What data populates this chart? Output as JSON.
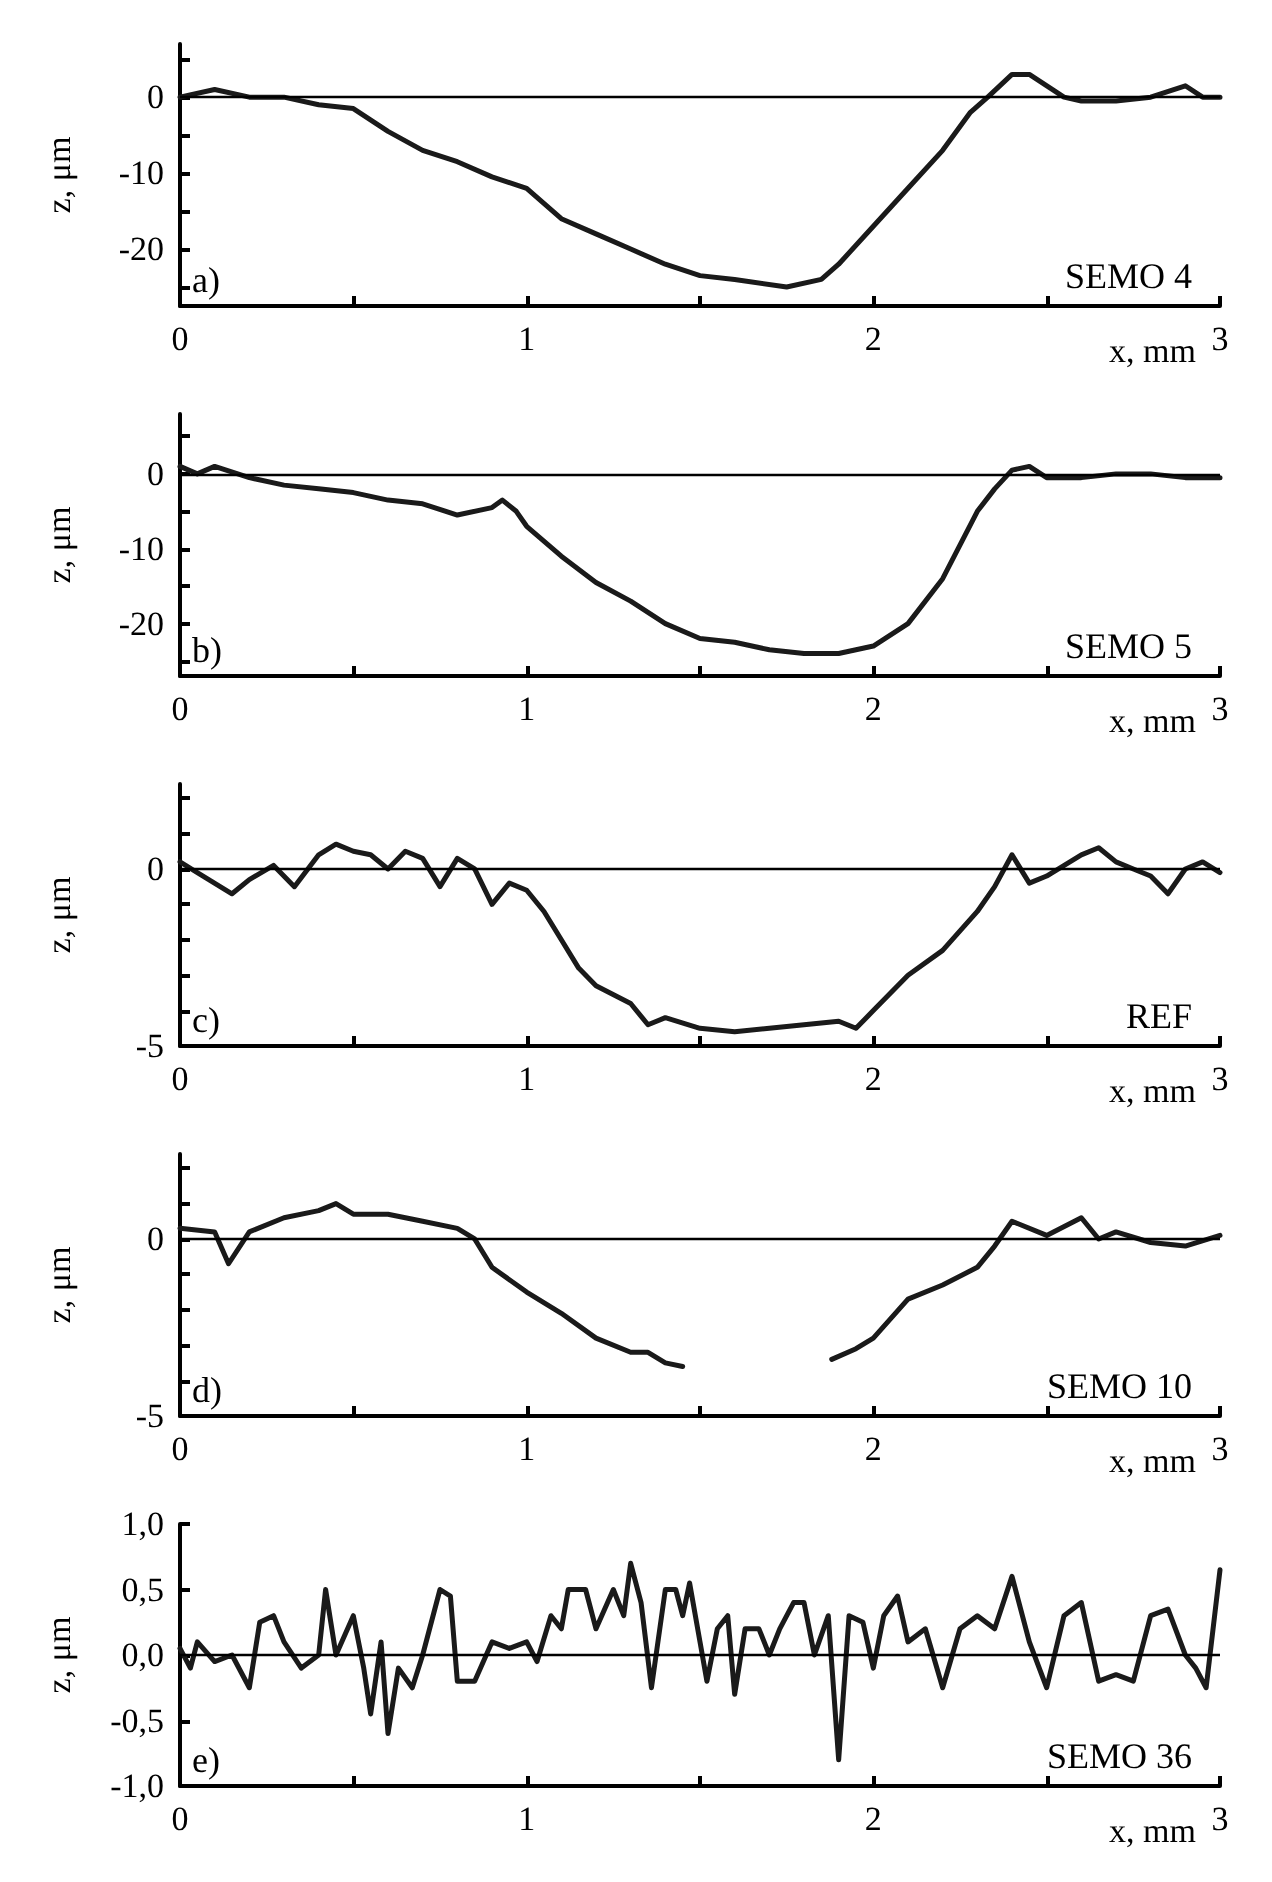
{
  "chart_data": [
    {
      "type": "line",
      "xlabel": "x, mm",
      "ylabel": "z, μm",
      "annotations": [
        "a)",
        "SEMO 4"
      ],
      "xlim": [
        0,
        3
      ],
      "ylim": [
        -27.5,
        7
      ],
      "xticks": [
        0,
        {
          "value": 0.5,
          "label": null
        },
        1,
        {
          "value": 1.5,
          "label": null
        },
        2,
        {
          "value": 2.5,
          "label": null
        },
        3
      ],
      "yticks": [
        {
          "value": -25,
          "label": null
        },
        -20,
        {
          "value": -15,
          "label": null
        },
        -10,
        {
          "value": -5,
          "label": null
        },
        0,
        {
          "value": 5,
          "label": null
        }
      ],
      "grid": false,
      "marker": "none",
      "line_style": "solid",
      "color": "#1a1a1a",
      "ref_lines": [
        {
          "axis": "y",
          "value": 0,
          "color": "#000000"
        }
      ],
      "x": [
        0,
        0.1,
        0.2,
        0.3,
        0.4,
        0.5,
        0.6,
        0.7,
        0.8,
        0.9,
        1.0,
        1.1,
        1.2,
        1.3,
        1.4,
        1.5,
        1.6,
        1.75,
        1.85,
        1.9,
        2.0,
        2.1,
        2.2,
        2.28,
        2.33,
        2.4,
        2.45,
        2.55,
        2.6,
        2.7,
        2.8,
        2.9,
        2.95,
        3.0
      ],
      "values": [
        0,
        1,
        0,
        0,
        -1,
        -1.5,
        -4.5,
        -7,
        -8.5,
        -10.5,
        -12,
        -16,
        -18,
        -20,
        -22,
        -23.5,
        -24,
        -25,
        -24,
        -22,
        -17,
        -12,
        -7,
        -2,
        0,
        3,
        3,
        0,
        -0.5,
        -0.5,
        0,
        1.5,
        0,
        0
      ]
    },
    {
      "type": "line",
      "xlabel": "x, mm",
      "ylabel": "z, μm",
      "annotations": [
        "b)",
        "SEMO 5"
      ],
      "xlim": [
        0,
        3
      ],
      "ylim": [
        -27,
        8
      ],
      "xticks": [
        0,
        {
          "value": 0.5,
          "label": null
        },
        1,
        {
          "value": 1.5,
          "label": null
        },
        2,
        {
          "value": 2.5,
          "label": null
        },
        3
      ],
      "yticks": [
        {
          "value": -25,
          "label": null
        },
        -20,
        {
          "value": -15,
          "label": null
        },
        -10,
        {
          "value": -5,
          "label": null
        },
        0,
        {
          "value": 5,
          "label": null
        }
      ],
      "grid": false,
      "marker": "none",
      "line_style": "solid",
      "color": "#1a1a1a",
      "ref_lines": [
        {
          "axis": "y",
          "value": 0,
          "color": "#000000"
        }
      ],
      "x": [
        0,
        0.05,
        0.1,
        0.2,
        0.3,
        0.4,
        0.5,
        0.6,
        0.7,
        0.8,
        0.9,
        0.93,
        0.97,
        1.0,
        1.1,
        1.2,
        1.3,
        1.4,
        1.5,
        1.6,
        1.7,
        1.8,
        1.9,
        2.0,
        2.1,
        2.2,
        2.3,
        2.35,
        2.4,
        2.45,
        2.5,
        2.6,
        2.7,
        2.8,
        2.9,
        3.0
      ],
      "values": [
        1,
        0,
        1,
        -0.5,
        -1.5,
        -2,
        -2.5,
        -3.5,
        -4,
        -5.5,
        -4.5,
        -3.5,
        -5,
        -7,
        -11,
        -14.5,
        -17,
        -20,
        -22,
        -22.5,
        -23.5,
        -24,
        -24,
        -23,
        -20,
        -14,
        -5,
        -2,
        0.5,
        1,
        -0.5,
        -0.5,
        0,
        0,
        -0.5,
        -0.5
      ]
    },
    {
      "type": "line",
      "xlabel": "x, mm",
      "ylabel": "z, μm",
      "annotations": [
        "c)",
        "REF"
      ],
      "xlim": [
        0,
        3
      ],
      "ylim": [
        -5,
        2.4
      ],
      "xticks": [
        0,
        {
          "value": 0.5,
          "label": null
        },
        1,
        {
          "value": 1.5,
          "label": null
        },
        2,
        {
          "value": 2.5,
          "label": null
        },
        3
      ],
      "yticks": [
        -5,
        {
          "value": -4,
          "label": null
        },
        {
          "value": -3,
          "label": null
        },
        {
          "value": -2,
          "label": null
        },
        {
          "value": -1,
          "label": null
        },
        0,
        {
          "value": 1,
          "label": null
        },
        {
          "value": 2,
          "label": null
        }
      ],
      "grid": false,
      "marker": "none",
      "line_style": "solid",
      "color": "#1a1a1a",
      "ref_lines": [
        {
          "axis": "y",
          "value": 0,
          "color": "#000000"
        }
      ],
      "x": [
        0,
        0.05,
        0.15,
        0.2,
        0.27,
        0.33,
        0.4,
        0.45,
        0.5,
        0.55,
        0.6,
        0.65,
        0.7,
        0.75,
        0.8,
        0.85,
        0.9,
        0.95,
        1.0,
        1.05,
        1.1,
        1.15,
        1.2,
        1.3,
        1.35,
        1.4,
        1.5,
        1.6,
        1.7,
        1.8,
        1.9,
        1.95,
        2.0,
        2.1,
        2.2,
        2.3,
        2.35,
        2.4,
        2.45,
        2.5,
        2.6,
        2.65,
        2.7,
        2.75,
        2.8,
        2.85,
        2.9,
        2.95,
        3.0
      ],
      "values": [
        0.2,
        -0.1,
        -0.7,
        -0.3,
        0.1,
        -0.5,
        0.4,
        0.7,
        0.5,
        0.4,
        0,
        0.5,
        0.3,
        -0.5,
        0.3,
        0,
        -1,
        -0.4,
        -0.6,
        -1.2,
        -2,
        -2.8,
        -3.3,
        -3.8,
        -4.4,
        -4.2,
        -4.5,
        -4.6,
        -4.5,
        -4.4,
        -4.3,
        -4.5,
        -4,
        -3,
        -2.3,
        -1.2,
        -0.5,
        0.4,
        -0.4,
        -0.2,
        0.4,
        0.6,
        0.2,
        0,
        -0.2,
        -0.7,
        0,
        0.2,
        -0.1
      ]
    },
    {
      "type": "line",
      "xlabel": "x, mm",
      "ylabel": "z, μm",
      "annotations": [
        "d)",
        "SEMO 10"
      ],
      "xlim": [
        0,
        3
      ],
      "ylim": [
        -5,
        2.4
      ],
      "xticks": [
        0,
        {
          "value": 0.5,
          "label": null
        },
        1,
        {
          "value": 1.5,
          "label": null
        },
        2,
        {
          "value": 2.5,
          "label": null
        },
        3
      ],
      "yticks": [
        -5,
        {
          "value": -4,
          "label": null
        },
        {
          "value": -3,
          "label": null
        },
        {
          "value": -2,
          "label": null
        },
        {
          "value": -1,
          "label": null
        },
        0,
        {
          "value": 1,
          "label": null
        },
        {
          "value": 2,
          "label": null
        }
      ],
      "grid": false,
      "marker": "none",
      "line_style": "solid",
      "color": "#1a1a1a",
      "ref_lines": [
        {
          "axis": "y",
          "value": 0,
          "color": "#000000"
        }
      ],
      "x": [
        0,
        0.1,
        0.14,
        0.2,
        0.3,
        0.4,
        0.45,
        0.5,
        0.6,
        0.7,
        0.8,
        0.85,
        0.9,
        1.0,
        1.1,
        1.2,
        1.3,
        1.35,
        1.4,
        1.45,
        1.6,
        1.88,
        1.95,
        2.0,
        2.1,
        2.2,
        2.3,
        2.35,
        2.4,
        2.5,
        2.6,
        2.65,
        2.7,
        2.8,
        2.9,
        3.0
      ],
      "values": [
        0.3,
        0.2,
        -0.7,
        0.2,
        0.6,
        0.8,
        1,
        0.7,
        0.7,
        0.5,
        0.3,
        0,
        -0.8,
        -1.5,
        -2.1,
        -2.8,
        -3.2,
        -3.2,
        -3.5,
        -3.6,
        null,
        -3.4,
        -3.1,
        -2.8,
        -1.7,
        -1.3,
        -0.8,
        -0.2,
        0.5,
        0.1,
        0.6,
        0,
        0.2,
        -0.1,
        -0.2,
        0.1
      ]
    },
    {
      "type": "line",
      "xlabel": "x, mm",
      "ylabel": "z, μm",
      "annotations": [
        "e)",
        "SEMO 36"
      ],
      "xlim": [
        0,
        3
      ],
      "ylim": [
        -1,
        1
      ],
      "xticks": [
        0,
        {
          "value": 0.5,
          "label": null
        },
        1,
        {
          "value": 1.5,
          "label": null
        },
        2,
        {
          "value": 2.5,
          "label": null
        },
        3
      ],
      "yticks": [
        {
          "value": -1,
          "label": "-1,0"
        },
        {
          "value": -0.5,
          "label": "-0,5"
        },
        {
          "value": 0,
          "label": "0,0"
        },
        {
          "value": 0.5,
          "label": "0,5"
        },
        {
          "value": 1,
          "label": "1,0"
        }
      ],
      "grid": false,
      "marker": "none",
      "line_style": "solid",
      "color": "#1a1a1a",
      "ref_lines": [
        {
          "axis": "y",
          "value": 0,
          "color": "#000000"
        }
      ],
      "x": [
        0,
        0.03,
        0.05,
        0.1,
        0.15,
        0.2,
        0.23,
        0.27,
        0.3,
        0.35,
        0.4,
        0.42,
        0.45,
        0.5,
        0.53,
        0.55,
        0.58,
        0.6,
        0.63,
        0.67,
        0.7,
        0.75,
        0.78,
        0.8,
        0.85,
        0.9,
        0.95,
        1.0,
        1.03,
        1.07,
        1.1,
        1.12,
        1.17,
        1.2,
        1.25,
        1.28,
        1.3,
        1.33,
        1.36,
        1.4,
        1.43,
        1.45,
        1.47,
        1.5,
        1.52,
        1.55,
        1.58,
        1.6,
        1.63,
        1.67,
        1.7,
        1.73,
        1.77,
        1.8,
        1.83,
        1.87,
        1.9,
        1.93,
        1.97,
        2.0,
        2.03,
        2.07,
        2.1,
        2.15,
        2.2,
        2.25,
        2.3,
        2.35,
        2.4,
        2.45,
        2.5,
        2.55,
        2.6,
        2.65,
        2.7,
        2.75,
        2.8,
        2.85,
        2.9,
        2.93,
        2.96,
        3.0
      ],
      "values": [
        0.05,
        -0.1,
        0.1,
        -0.05,
        0,
        -0.25,
        0.25,
        0.3,
        0.1,
        -0.1,
        0,
        0.5,
        0,
        0.3,
        -0.1,
        -0.45,
        0.1,
        -0.6,
        -0.1,
        -0.25,
        0,
        0.5,
        0.45,
        -0.2,
        -0.2,
        0.1,
        0.05,
        0.1,
        -0.05,
        0.3,
        0.2,
        0.5,
        0.5,
        0.2,
        0.5,
        0.3,
        0.7,
        0.4,
        -0.25,
        0.5,
        0.5,
        0.3,
        0.55,
        0.1,
        -0.2,
        0.2,
        0.3,
        -0.3,
        0.2,
        0.2,
        0,
        0.2,
        0.4,
        0.4,
        0,
        0.3,
        -0.8,
        0.3,
        0.25,
        -0.1,
        0.3,
        0.45,
        0.1,
        0.2,
        -0.25,
        0.2,
        0.3,
        0.2,
        0.6,
        0.1,
        -0.25,
        0.3,
        0.4,
        -0.2,
        -0.15,
        -0.2,
        0.3,
        0.35,
        0,
        -0.1,
        -0.25,
        0.65
      ]
    }
  ]
}
